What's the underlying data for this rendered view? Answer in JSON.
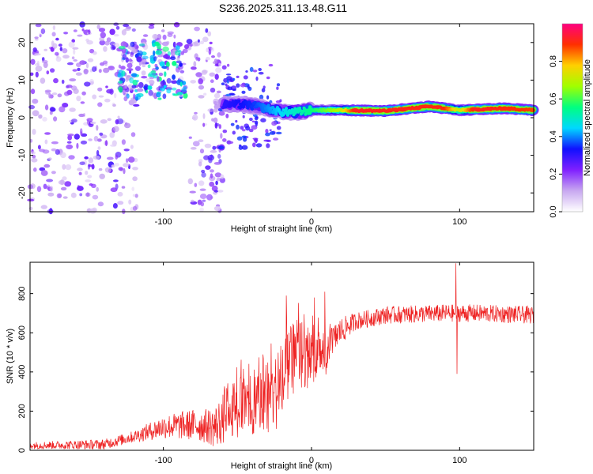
{
  "title": "S236.2025.311.13.48.G11",
  "chart_data": [
    {
      "type": "heatmap",
      "xlabel": "Height of straight line (km)",
      "ylabel": "Frequency (Hz)",
      "xlim": [
        -190,
        150
      ],
      "ylim": [
        -25,
        25
      ],
      "xticks": [
        -100,
        0,
        100
      ],
      "yticks": [
        -20,
        -10,
        0,
        10,
        20
      ],
      "colorbar": {
        "label": "Normalized spectral amplitude",
        "range": [
          0,
          1
        ],
        "ticks": [
          "0.0",
          "0.2",
          "0.4",
          "0.6",
          "0.8"
        ],
        "tick_values": [
          0,
          0.2,
          0.4,
          0.6,
          0.8
        ],
        "colors": [
          "#ffffff",
          "#c8a8f0",
          "#8020ff",
          "#1010ff",
          "#00d8ff",
          "#00ff80",
          "#a0ff00",
          "#ffd000",
          "#ff3000",
          "#ff0080"
        ]
      },
      "signal_band": {
        "points": [
          {
            "x": -60,
            "y": 3.5
          },
          {
            "x": -45,
            "y": 3.5
          },
          {
            "x": -30,
            "y": 2.5
          },
          {
            "x": -20,
            "y": 1.5
          },
          {
            "x": -10,
            "y": 1.5
          },
          {
            "x": 0,
            "y": 2
          },
          {
            "x": 20,
            "y": 2
          },
          {
            "x": 50,
            "y": 1.8
          },
          {
            "x": 80,
            "y": 3
          },
          {
            "x": 100,
            "y": 2
          },
          {
            "x": 130,
            "y": 2.5
          },
          {
            "x": 150,
            "y": 2
          }
        ],
        "intensity": [
          {
            "x": -60,
            "v": 0.3
          },
          {
            "x": -40,
            "v": 0.35
          },
          {
            "x": -20,
            "v": 0.45
          },
          {
            "x": 0,
            "v": 0.55
          },
          {
            "x": 20,
            "v": 0.7
          },
          {
            "x": 30,
            "v": 0.92
          },
          {
            "x": 90,
            "v": 0.9
          },
          {
            "x": 100,
            "v": 0.7
          },
          {
            "x": 110,
            "v": 0.92
          },
          {
            "x": 150,
            "v": 0.88
          }
        ]
      },
      "noise_regions": [
        {
          "x": [
            -190,
            -60
          ],
          "y": [
            -25,
            25
          ],
          "level": 0.15
        },
        {
          "x": [
            -130,
            -85
          ],
          "y": [
            5,
            20
          ],
          "level": 0.3
        }
      ],
      "empty_region": {
        "x": [
          -118,
          -82
        ],
        "y": [
          -25,
          6
        ]
      }
    },
    {
      "type": "line",
      "xlabel": "Height of straight line (km)",
      "ylabel": "SNR (10 * v/v)",
      "xlim": [
        -190,
        150
      ],
      "ylim": [
        0,
        960
      ],
      "xticks": [
        -100,
        0,
        100
      ],
      "yticks": [
        0,
        200,
        400,
        600,
        800
      ],
      "color": "#ee2222",
      "trend": [
        {
          "x": -190,
          "y": 25
        },
        {
          "x": -140,
          "y": 30
        },
        {
          "x": -120,
          "y": 70
        },
        {
          "x": -100,
          "y": 120
        },
        {
          "x": -80,
          "y": 130
        },
        {
          "x": -65,
          "y": 120
        },
        {
          "x": -55,
          "y": 200
        },
        {
          "x": -45,
          "y": 230
        },
        {
          "x": -30,
          "y": 250
        },
        {
          "x": -20,
          "y": 330
        },
        {
          "x": -15,
          "y": 430
        },
        {
          "x": -10,
          "y": 500
        },
        {
          "x": 0,
          "y": 480
        },
        {
          "x": 8,
          "y": 460
        },
        {
          "x": 18,
          "y": 600
        },
        {
          "x": 30,
          "y": 660
        },
        {
          "x": 50,
          "y": 690
        },
        {
          "x": 90,
          "y": 700
        },
        {
          "x": 110,
          "y": 700
        },
        {
          "x": 150,
          "y": 690
        }
      ],
      "noise_amplitude": [
        {
          "x": -190,
          "a": 18
        },
        {
          "x": -120,
          "a": 30
        },
        {
          "x": -100,
          "a": 60
        },
        {
          "x": -70,
          "a": 90
        },
        {
          "x": -55,
          "a": 150
        },
        {
          "x": -20,
          "a": 200
        },
        {
          "x": 0,
          "a": 170
        },
        {
          "x": 15,
          "a": 80
        },
        {
          "x": 30,
          "a": 45
        },
        {
          "x": 150,
          "a": 45
        }
      ],
      "spikes": [
        {
          "x": 97.5,
          "y": 955
        },
        {
          "x": 98.2,
          "y": 390
        },
        {
          "x": 9,
          "y": 810
        },
        {
          "x": -17,
          "y": 790
        },
        {
          "x": 2,
          "y": 780
        }
      ]
    }
  ]
}
